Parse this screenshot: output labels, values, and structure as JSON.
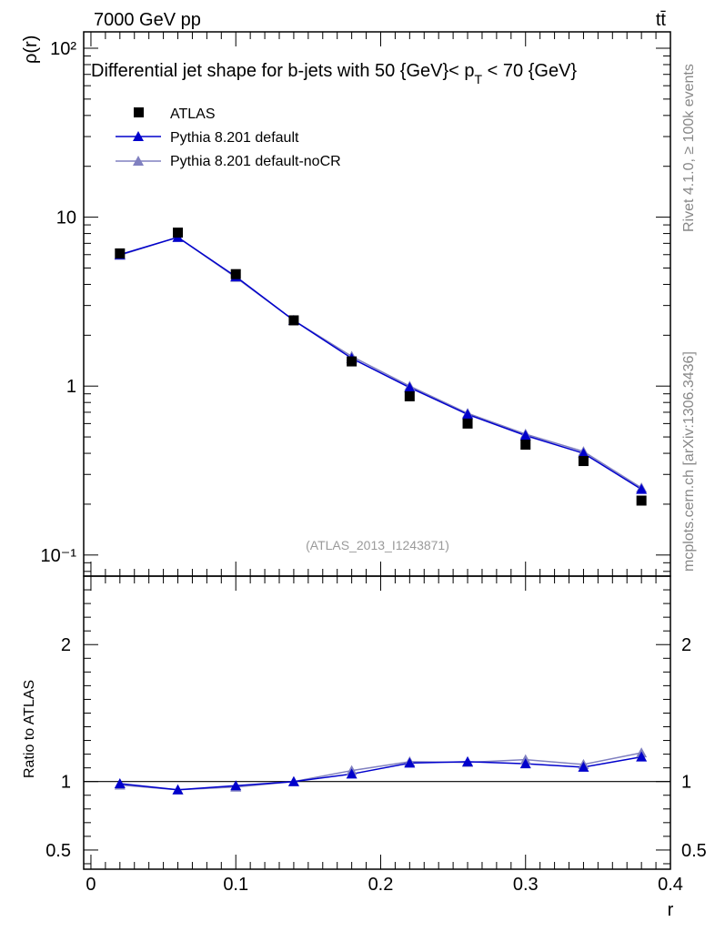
{
  "header": {
    "energy_label": "7000 GeV pp",
    "process_label": "tt̄",
    "title_prefix": "Differential jet shape for b-jets with 50 {GeV}< p",
    "title_sub": "T",
    "title_suffix": " < 70 {GeV}",
    "watermark": "(ATLAS_2013_I1243871)",
    "side_top": "Rivet 4.1.0, ≥ 100k events",
    "side_bottom": "mcplots.cern.ch [arXiv:1306.3436]"
  },
  "colors": {
    "data": "#000000",
    "pythia_default": "#0000cc",
    "pythia_nocr": "#8080c0",
    "watermark": "#9a9a9a"
  },
  "chart_data": [
    {
      "type": "scatter",
      "title": "Differential jet shape for b-jets with 50 {GeV}< p_T < 70 {GeV}",
      "ylabel": "ρ(r)",
      "xlabel": "r",
      "yscale": "log",
      "xlim": [
        -0.005,
        0.4
      ],
      "ylim": [
        0.075,
        125
      ],
      "ytick_labels": [
        "10⁻¹",
        "1",
        "10",
        "10²"
      ],
      "ytick_values": [
        0.1,
        1,
        10,
        100
      ],
      "legend_position": "top-left",
      "x": [
        0.02,
        0.06,
        0.1,
        0.14,
        0.18,
        0.22,
        0.26,
        0.3,
        0.34,
        0.38
      ],
      "series": [
        {
          "name": "ATLAS",
          "marker": "square",
          "values": [
            6.1,
            8.1,
            4.6,
            2.45,
            1.4,
            0.87,
            0.6,
            0.45,
            0.36,
            0.21
          ]
        },
        {
          "name": "Pythia 8.201 default",
          "marker": "triangle",
          "values": [
            6.0,
            7.6,
            4.45,
            2.45,
            1.46,
            0.98,
            0.68,
            0.51,
            0.4,
            0.245
          ]
        },
        {
          "name": "Pythia 8.201 default-noCR",
          "marker": "triangle",
          "values": [
            5.95,
            7.6,
            4.4,
            2.45,
            1.5,
            1.0,
            0.69,
            0.52,
            0.41,
            0.25
          ]
        }
      ]
    },
    {
      "type": "line",
      "ylabel": "Ratio to ATLAS",
      "xlabel": "r",
      "xlim": [
        -0.005,
        0.4
      ],
      "ylim": [
        0.36,
        2.5
      ],
      "ytick_labels": [
        "0.5",
        "1",
        "2"
      ],
      "ytick_values": [
        0.5,
        1,
        2
      ],
      "xtick_labels": [
        "0",
        "0.1",
        "0.2",
        "0.3",
        "0.4"
      ],
      "xtick_values": [
        0,
        0.1,
        0.2,
        0.3,
        0.4
      ],
      "reference_line": 1,
      "x": [
        0.02,
        0.06,
        0.1,
        0.14,
        0.18,
        0.22,
        0.26,
        0.3,
        0.34,
        0.38
      ],
      "series": [
        {
          "name": "Pythia 8.201 default",
          "values": [
            0.985,
            0.94,
            0.97,
            1.0,
            1.055,
            1.135,
            1.145,
            1.13,
            1.105,
            1.18
          ]
        },
        {
          "name": "Pythia 8.201 default-noCR",
          "values": [
            0.975,
            0.94,
            0.96,
            1.0,
            1.08,
            1.145,
            1.14,
            1.16,
            1.125,
            1.21
          ]
        }
      ]
    }
  ]
}
